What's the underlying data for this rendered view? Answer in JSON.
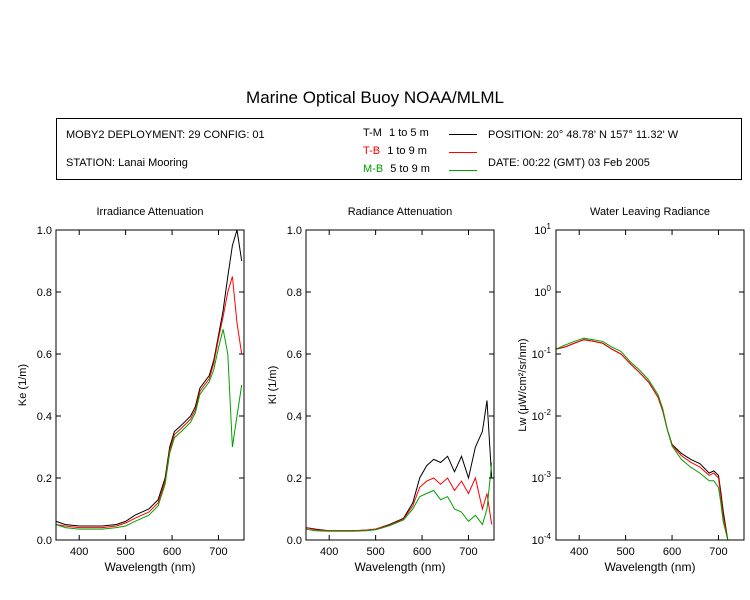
{
  "title": "Marine Optical Buoy NOAA/MLML",
  "info": {
    "deployment": "MOBY2 DEPLOYMENT: 29 CONFIG: 01",
    "station": "STATION: Lanai Mooring",
    "position": "POSITION: 20° 48.78' N   157° 11.32' W",
    "date": "DATE: 00:22 (GMT) 03 Feb 2005"
  },
  "legend": [
    {
      "code": "T-M",
      "range": "1 to 5  m",
      "color": "#000000"
    },
    {
      "code": "T-B",
      "range": "1 to 9  m",
      "color": "#ff0000"
    },
    {
      "code": "M-B",
      "range": "5 to 9  m",
      "color": "#00a000"
    }
  ],
  "chart_data": [
    {
      "type": "line",
      "title": "Irradiance Attenuation",
      "xlabel": "Wavelength (nm)",
      "ylabel": "Ke  (1/m)",
      "xlim": [
        350,
        755
      ],
      "ylim": [
        0,
        1
      ],
      "xticks": [
        400,
        500,
        600,
        700
      ],
      "yticks": [
        "0.0",
        "0.2",
        "0.4",
        "0.6",
        "0.8",
        "1.0"
      ],
      "series": [
        {
          "code": "T-M",
          "color": "#000000",
          "x": [
            350,
            370,
            400,
            450,
            480,
            500,
            520,
            550,
            570,
            585,
            595,
            605,
            620,
            640,
            650,
            660,
            670,
            680,
            690,
            700,
            710,
            720,
            730,
            740,
            750
          ],
          "y": [
            0.06,
            0.05,
            0.045,
            0.045,
            0.05,
            0.06,
            0.08,
            0.1,
            0.13,
            0.2,
            0.3,
            0.35,
            0.37,
            0.4,
            0.43,
            0.49,
            0.51,
            0.53,
            0.58,
            0.66,
            0.74,
            0.85,
            0.95,
            1.0,
            0.9
          ]
        },
        {
          "code": "T-B",
          "color": "#ff0000",
          "x": [
            350,
            370,
            400,
            450,
            480,
            500,
            520,
            550,
            570,
            585,
            595,
            605,
            620,
            640,
            650,
            660,
            670,
            680,
            690,
            700,
            710,
            720,
            730,
            740,
            750
          ],
          "y": [
            0.05,
            0.045,
            0.04,
            0.04,
            0.045,
            0.055,
            0.07,
            0.09,
            0.12,
            0.19,
            0.29,
            0.34,
            0.36,
            0.39,
            0.42,
            0.48,
            0.5,
            0.52,
            0.57,
            0.65,
            0.72,
            0.8,
            0.85,
            0.7,
            0.6
          ]
        },
        {
          "code": "M-B",
          "color": "#00a000",
          "x": [
            350,
            370,
            400,
            450,
            480,
            500,
            520,
            550,
            570,
            585,
            595,
            605,
            620,
            640,
            650,
            660,
            670,
            680,
            690,
            700,
            710,
            720,
            730,
            740,
            750
          ],
          "y": [
            0.05,
            0.04,
            0.035,
            0.035,
            0.04,
            0.045,
            0.06,
            0.08,
            0.11,
            0.18,
            0.28,
            0.33,
            0.35,
            0.38,
            0.41,
            0.47,
            0.49,
            0.51,
            0.55,
            0.62,
            0.68,
            0.6,
            0.3,
            0.4,
            0.5
          ]
        }
      ]
    },
    {
      "type": "line",
      "title": "Radiance Attenuation",
      "xlabel": "Wavelength (nm)",
      "ylabel": "Kl  (1/m)",
      "xlim": [
        350,
        755
      ],
      "ylim": [
        0,
        1
      ],
      "xticks": [
        400,
        500,
        600,
        700
      ],
      "yticks": [
        "0.0",
        "0.2",
        "0.4",
        "0.6",
        "0.8",
        "1.0"
      ],
      "series": [
        {
          "code": "T-M",
          "color": "#000000",
          "x": [
            350,
            370,
            400,
            450,
            480,
            500,
            530,
            560,
            580,
            595,
            610,
            625,
            640,
            655,
            670,
            685,
            700,
            715,
            730,
            740,
            750
          ],
          "y": [
            0.04,
            0.035,
            0.03,
            0.03,
            0.032,
            0.035,
            0.05,
            0.07,
            0.12,
            0.2,
            0.24,
            0.26,
            0.25,
            0.27,
            0.22,
            0.27,
            0.2,
            0.3,
            0.35,
            0.45,
            0.2
          ]
        },
        {
          "code": "T-B",
          "color": "#ff0000",
          "x": [
            350,
            370,
            400,
            450,
            480,
            500,
            530,
            560,
            580,
            595,
            610,
            625,
            640,
            655,
            670,
            685,
            700,
            715,
            730,
            740,
            750
          ],
          "y": [
            0.04,
            0.033,
            0.03,
            0.03,
            0.032,
            0.035,
            0.048,
            0.068,
            0.11,
            0.17,
            0.19,
            0.2,
            0.18,
            0.2,
            0.16,
            0.19,
            0.15,
            0.2,
            0.1,
            0.15,
            0.05
          ]
        },
        {
          "code": "M-B",
          "color": "#00a000",
          "x": [
            350,
            370,
            400,
            450,
            480,
            500,
            530,
            560,
            580,
            595,
            610,
            625,
            640,
            655,
            670,
            685,
            700,
            715,
            730,
            740,
            750
          ],
          "y": [
            0.035,
            0.03,
            0.028,
            0.028,
            0.03,
            0.033,
            0.046,
            0.065,
            0.1,
            0.14,
            0.15,
            0.16,
            0.13,
            0.14,
            0.1,
            0.09,
            0.06,
            0.08,
            0.05,
            0.1,
            0.25
          ]
        }
      ]
    },
    {
      "type": "line",
      "title": "Water Leaving Radiance",
      "xlabel": "Wavelength (nm)",
      "ylabel": "Lw  (μW/cm²/sr/nm)",
      "scale": "log",
      "xlim": [
        350,
        755
      ],
      "ylim_exp": [
        -4,
        1
      ],
      "xticks": [
        400,
        500,
        600,
        700
      ],
      "yticks": [
        {
          "base": "10",
          "exp": "-4"
        },
        {
          "base": "10",
          "exp": "-3"
        },
        {
          "base": "10",
          "exp": "-2"
        },
        {
          "base": "10",
          "exp": "-1"
        },
        {
          "base": "10",
          "exp": "0"
        },
        {
          "base": "10",
          "exp": "1"
        }
      ],
      "series": [
        {
          "code": "T-M",
          "color": "#000000",
          "x": [
            350,
            370,
            390,
            410,
            430,
            450,
            470,
            490,
            510,
            530,
            550,
            570,
            580,
            590,
            600,
            620,
            640,
            660,
            680,
            690,
            700,
            705,
            710,
            720
          ],
          "y": [
            0.12,
            0.13,
            0.15,
            0.17,
            0.16,
            0.15,
            0.12,
            0.1,
            0.07,
            0.05,
            0.035,
            0.02,
            0.012,
            0.006,
            0.0035,
            0.0025,
            0.002,
            0.0017,
            0.0012,
            0.0013,
            0.0011,
            0.0006,
            0.0003,
            0.0001
          ]
        },
        {
          "code": "T-B",
          "color": "#ff0000",
          "x": [
            350,
            370,
            390,
            410,
            430,
            450,
            470,
            490,
            510,
            530,
            550,
            570,
            580,
            590,
            600,
            620,
            640,
            660,
            680,
            690,
            700,
            705,
            710,
            720
          ],
          "y": [
            0.12,
            0.13,
            0.15,
            0.17,
            0.16,
            0.15,
            0.12,
            0.1,
            0.07,
            0.05,
            0.035,
            0.02,
            0.012,
            0.006,
            0.0034,
            0.0023,
            0.0018,
            0.0015,
            0.0011,
            0.0012,
            0.001,
            0.0005,
            0.00025,
            0.0001
          ]
        },
        {
          "code": "M-B",
          "color": "#00a000",
          "x": [
            350,
            370,
            390,
            410,
            430,
            450,
            470,
            490,
            510,
            530,
            550,
            570,
            580,
            590,
            600,
            620,
            640,
            660,
            680,
            690,
            700,
            705,
            710,
            720
          ],
          "y": [
            0.12,
            0.14,
            0.16,
            0.18,
            0.17,
            0.16,
            0.13,
            0.11,
            0.075,
            0.055,
            0.038,
            0.022,
            0.013,
            0.006,
            0.0033,
            0.002,
            0.0015,
            0.0012,
            0.0009,
            0.0009,
            0.0007,
            0.0004,
            0.0002,
            0.0001
          ]
        }
      ]
    }
  ]
}
